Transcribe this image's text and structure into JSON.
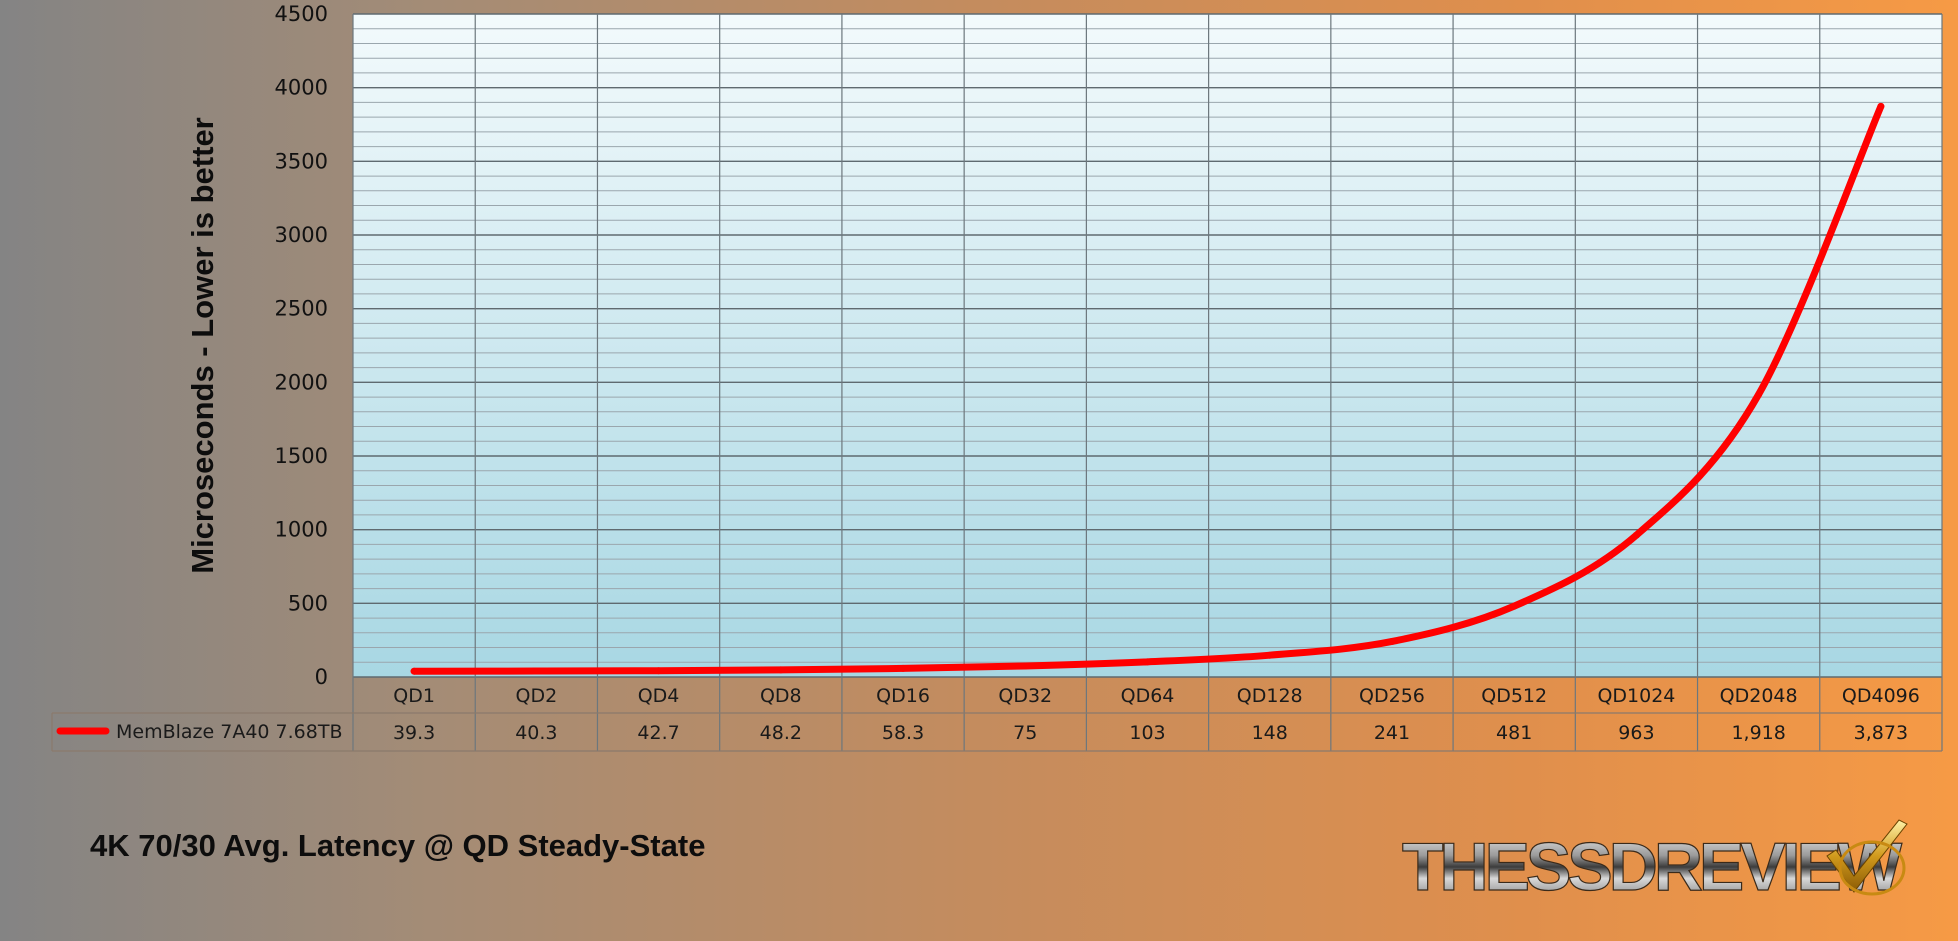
{
  "chart_data": {
    "type": "line",
    "title": "4K 70/30 Avg. Latency @ QD Steady-State",
    "ylabel": "Microseconds - Lower is better",
    "xlabel": "",
    "categories": [
      "QD1",
      "QD2",
      "QD4",
      "QD8",
      "QD16",
      "QD32",
      "QD64",
      "QD128",
      "QD256",
      "QD512",
      "QD1024",
      "QD2048",
      "QD4096"
    ],
    "ylim": [
      0,
      4500
    ],
    "yticks": [
      0,
      500,
      1000,
      1500,
      2000,
      2500,
      3000,
      3500,
      4000,
      4500
    ],
    "grid": true,
    "legend_placement": "bottom data table",
    "series": [
      {
        "name": "MemBlaze 7A40 7.68TB",
        "color": "#ff0000",
        "values": [
          39.3,
          40.3,
          42.7,
          48.2,
          58.3,
          75,
          103,
          148,
          241,
          481,
          963,
          1918,
          3873
        ],
        "value_labels": [
          "39.3",
          "40.3",
          "42.7",
          "48.2",
          "58.3",
          "75",
          "103",
          "148",
          "241",
          "481",
          "963",
          "1,918",
          "3,873"
        ]
      }
    ]
  },
  "branding": {
    "logo_text": "THESSDREVIEW"
  },
  "colors": {
    "line": "#ff0000",
    "grid": "#7f8a90",
    "plot_top": "#f2fafc",
    "plot_bottom": "#a9d8e4"
  }
}
